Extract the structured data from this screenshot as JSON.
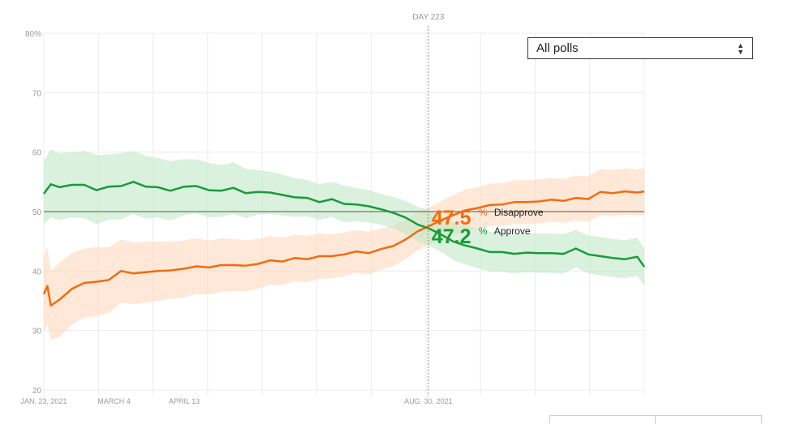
{
  "selector": {
    "value": "All polls"
  },
  "marker": {
    "label": "DAY 223",
    "date_label": "AUG. 30, 2021"
  },
  "readout": {
    "disapprove_value": "47.5",
    "disapprove_unit": "%",
    "disapprove_label": "Disapprove",
    "approve_value": "47.2",
    "approve_unit": "%",
    "approve_label": "Approve"
  },
  "colors": {
    "approve": "#1a9a3a",
    "disapprove": "#f26b0f",
    "approve_band": "#bfe8c6",
    "disapprove_band": "#ffd8bd",
    "grid": "#ececec",
    "reference_line": "#555555"
  },
  "chart_data": {
    "type": "line",
    "x_type": "date",
    "xlim": [
      "2021-01-23",
      "2021-12-31"
    ],
    "ylim": [
      20,
      80
    ],
    "y_ticks": [
      20,
      30,
      40,
      50,
      60,
      70,
      80
    ],
    "y_tick_labels": [
      "20",
      "30",
      "40",
      "50",
      "60",
      "70",
      "80%"
    ],
    "x_ticks": [
      {
        "date": "2021-01-23",
        "label": "JAN. 23, 2021"
      },
      {
        "date": "2021-03-04",
        "label": "MARCH 4"
      },
      {
        "date": "2021-04-13",
        "label": "APRIL 13"
      },
      {
        "date": "2021-08-30",
        "label": "AUG. 30, 2021"
      }
    ],
    "reference_line": 50,
    "grid": true,
    "series": [
      {
        "name": "Approve",
        "dates": [
          "2021-01-23",
          "2021-01-27",
          "2021-02-01",
          "2021-02-08",
          "2021-02-15",
          "2021-02-22",
          "2021-03-01",
          "2021-03-08",
          "2021-03-15",
          "2021-03-22",
          "2021-03-29",
          "2021-04-05",
          "2021-04-13",
          "2021-04-20",
          "2021-04-27",
          "2021-05-04",
          "2021-05-11",
          "2021-05-18",
          "2021-05-25",
          "2021-06-01",
          "2021-06-08",
          "2021-06-15",
          "2021-06-22",
          "2021-06-29",
          "2021-07-06",
          "2021-07-13",
          "2021-07-20",
          "2021-07-27",
          "2021-08-03",
          "2021-08-10",
          "2021-08-17",
          "2021-08-24",
          "2021-08-30",
          "2021-09-06",
          "2021-09-13",
          "2021-09-20",
          "2021-09-27",
          "2021-10-04",
          "2021-10-11",
          "2021-10-18",
          "2021-10-25",
          "2021-11-01",
          "2021-11-08",
          "2021-11-15",
          "2021-11-22",
          "2021-11-29",
          "2021-12-06",
          "2021-12-13",
          "2021-12-20",
          "2021-12-27",
          "2021-12-31"
        ],
        "values": [
          53.0,
          54.6,
          54.1,
          54.5,
          54.5,
          53.6,
          54.2,
          54.3,
          55.0,
          54.2,
          54.1,
          53.5,
          54.2,
          54.3,
          53.6,
          53.5,
          54.0,
          53.1,
          53.3,
          53.2,
          52.8,
          52.4,
          52.3,
          51.6,
          52.1,
          51.3,
          51.2,
          50.9,
          50.4,
          49.8,
          49.0,
          47.8,
          47.2,
          46.2,
          45.0,
          44.3,
          43.8,
          43.2,
          43.2,
          42.9,
          43.1,
          43.0,
          43.0,
          42.9,
          43.8,
          42.8,
          42.5,
          42.2,
          42.0,
          42.4,
          40.7
        ],
        "upper": [
          58.5,
          60.5,
          59.8,
          60.0,
          60.2,
          59.5,
          59.6,
          59.8,
          60.2,
          59.4,
          59.0,
          58.5,
          58.8,
          58.8,
          58.2,
          57.8,
          58.3,
          57.2,
          57.0,
          56.7,
          56.2,
          55.6,
          55.3,
          54.6,
          55.0,
          54.4,
          54.0,
          53.6,
          53.0,
          52.5,
          51.8,
          50.8,
          50.3,
          49.2,
          48.2,
          47.6,
          47.2,
          46.6,
          46.5,
          46.3,
          46.4,
          46.3,
          46.3,
          46.2,
          46.9,
          46.0,
          45.7,
          45.4,
          45.2,
          45.6,
          43.8
        ],
        "lower": [
          48.0,
          49.0,
          48.6,
          49.0,
          48.9,
          47.9,
          48.6,
          48.7,
          49.6,
          48.8,
          49.0,
          48.5,
          49.4,
          49.7,
          49.0,
          49.1,
          49.6,
          48.9,
          49.5,
          49.6,
          49.3,
          49.1,
          49.2,
          48.6,
          49.1,
          48.2,
          48.4,
          48.2,
          47.8,
          47.2,
          46.2,
          45.0,
          44.3,
          43.3,
          41.9,
          41.1,
          40.5,
          39.9,
          39.9,
          39.6,
          39.8,
          39.7,
          39.7,
          39.6,
          40.6,
          39.6,
          39.3,
          39.0,
          38.8,
          39.2,
          37.6
        ]
      },
      {
        "name": "Disapprove",
        "dates": [
          "2021-01-23",
          "2021-01-25",
          "2021-01-27",
          "2021-02-01",
          "2021-02-08",
          "2021-02-15",
          "2021-02-22",
          "2021-03-01",
          "2021-03-08",
          "2021-03-15",
          "2021-03-22",
          "2021-03-29",
          "2021-04-05",
          "2021-04-13",
          "2021-04-20",
          "2021-04-27",
          "2021-05-04",
          "2021-05-11",
          "2021-05-18",
          "2021-05-25",
          "2021-06-01",
          "2021-06-08",
          "2021-06-15",
          "2021-06-22",
          "2021-06-29",
          "2021-07-06",
          "2021-07-13",
          "2021-07-20",
          "2021-07-27",
          "2021-08-03",
          "2021-08-10",
          "2021-08-17",
          "2021-08-24",
          "2021-08-30",
          "2021-09-06",
          "2021-09-13",
          "2021-09-20",
          "2021-09-27",
          "2021-10-04",
          "2021-10-11",
          "2021-10-18",
          "2021-10-25",
          "2021-11-01",
          "2021-11-08",
          "2021-11-15",
          "2021-11-22",
          "2021-11-29",
          "2021-12-06",
          "2021-12-13",
          "2021-12-20",
          "2021-12-27",
          "2021-12-31"
        ],
        "values": [
          36.1,
          37.5,
          34.2,
          35.2,
          37.0,
          38.0,
          38.2,
          38.5,
          40.0,
          39.6,
          39.8,
          40.0,
          40.1,
          40.4,
          40.8,
          40.6,
          41.0,
          41.0,
          40.9,
          41.2,
          41.8,
          41.6,
          42.2,
          42.0,
          42.5,
          42.5,
          42.8,
          43.3,
          43.0,
          43.7,
          44.2,
          45.3,
          46.7,
          47.5,
          48.5,
          49.4,
          50.2,
          50.6,
          51.1,
          51.2,
          51.6,
          51.6,
          51.7,
          52.0,
          51.8,
          52.3,
          52.1,
          53.3,
          53.1,
          53.4,
          53.2,
          53.4
        ],
        "upper": [
          42.5,
          44.0,
          40.0,
          41.5,
          43.0,
          43.8,
          44.0,
          44.0,
          45.3,
          44.8,
          44.9,
          45.0,
          44.9,
          45.2,
          45.5,
          45.1,
          45.5,
          45.4,
          45.2,
          45.4,
          45.9,
          45.6,
          46.1,
          45.9,
          46.3,
          46.2,
          46.5,
          46.9,
          46.6,
          47.2,
          47.6,
          48.6,
          49.9,
          50.6,
          51.7,
          52.8,
          53.7,
          54.1,
          54.7,
          54.8,
          55.3,
          55.3,
          55.4,
          55.7,
          55.5,
          56.1,
          55.9,
          57.2,
          57.0,
          57.3,
          57.1,
          57.4
        ],
        "lower": [
          29.7,
          31.0,
          28.4,
          28.9,
          31.0,
          32.2,
          32.4,
          33.0,
          34.7,
          34.4,
          34.7,
          35.0,
          35.3,
          35.6,
          36.1,
          36.1,
          36.5,
          36.6,
          36.6,
          37.0,
          37.7,
          37.6,
          38.3,
          38.1,
          38.7,
          38.8,
          39.1,
          39.7,
          39.4,
          40.2,
          40.8,
          42.0,
          43.5,
          44.4,
          45.3,
          46.0,
          46.7,
          47.1,
          47.5,
          47.6,
          47.9,
          47.9,
          48.0,
          48.3,
          48.1,
          48.5,
          48.3,
          49.4,
          49.2,
          49.5,
          49.3,
          49.4
        ]
      }
    ]
  }
}
